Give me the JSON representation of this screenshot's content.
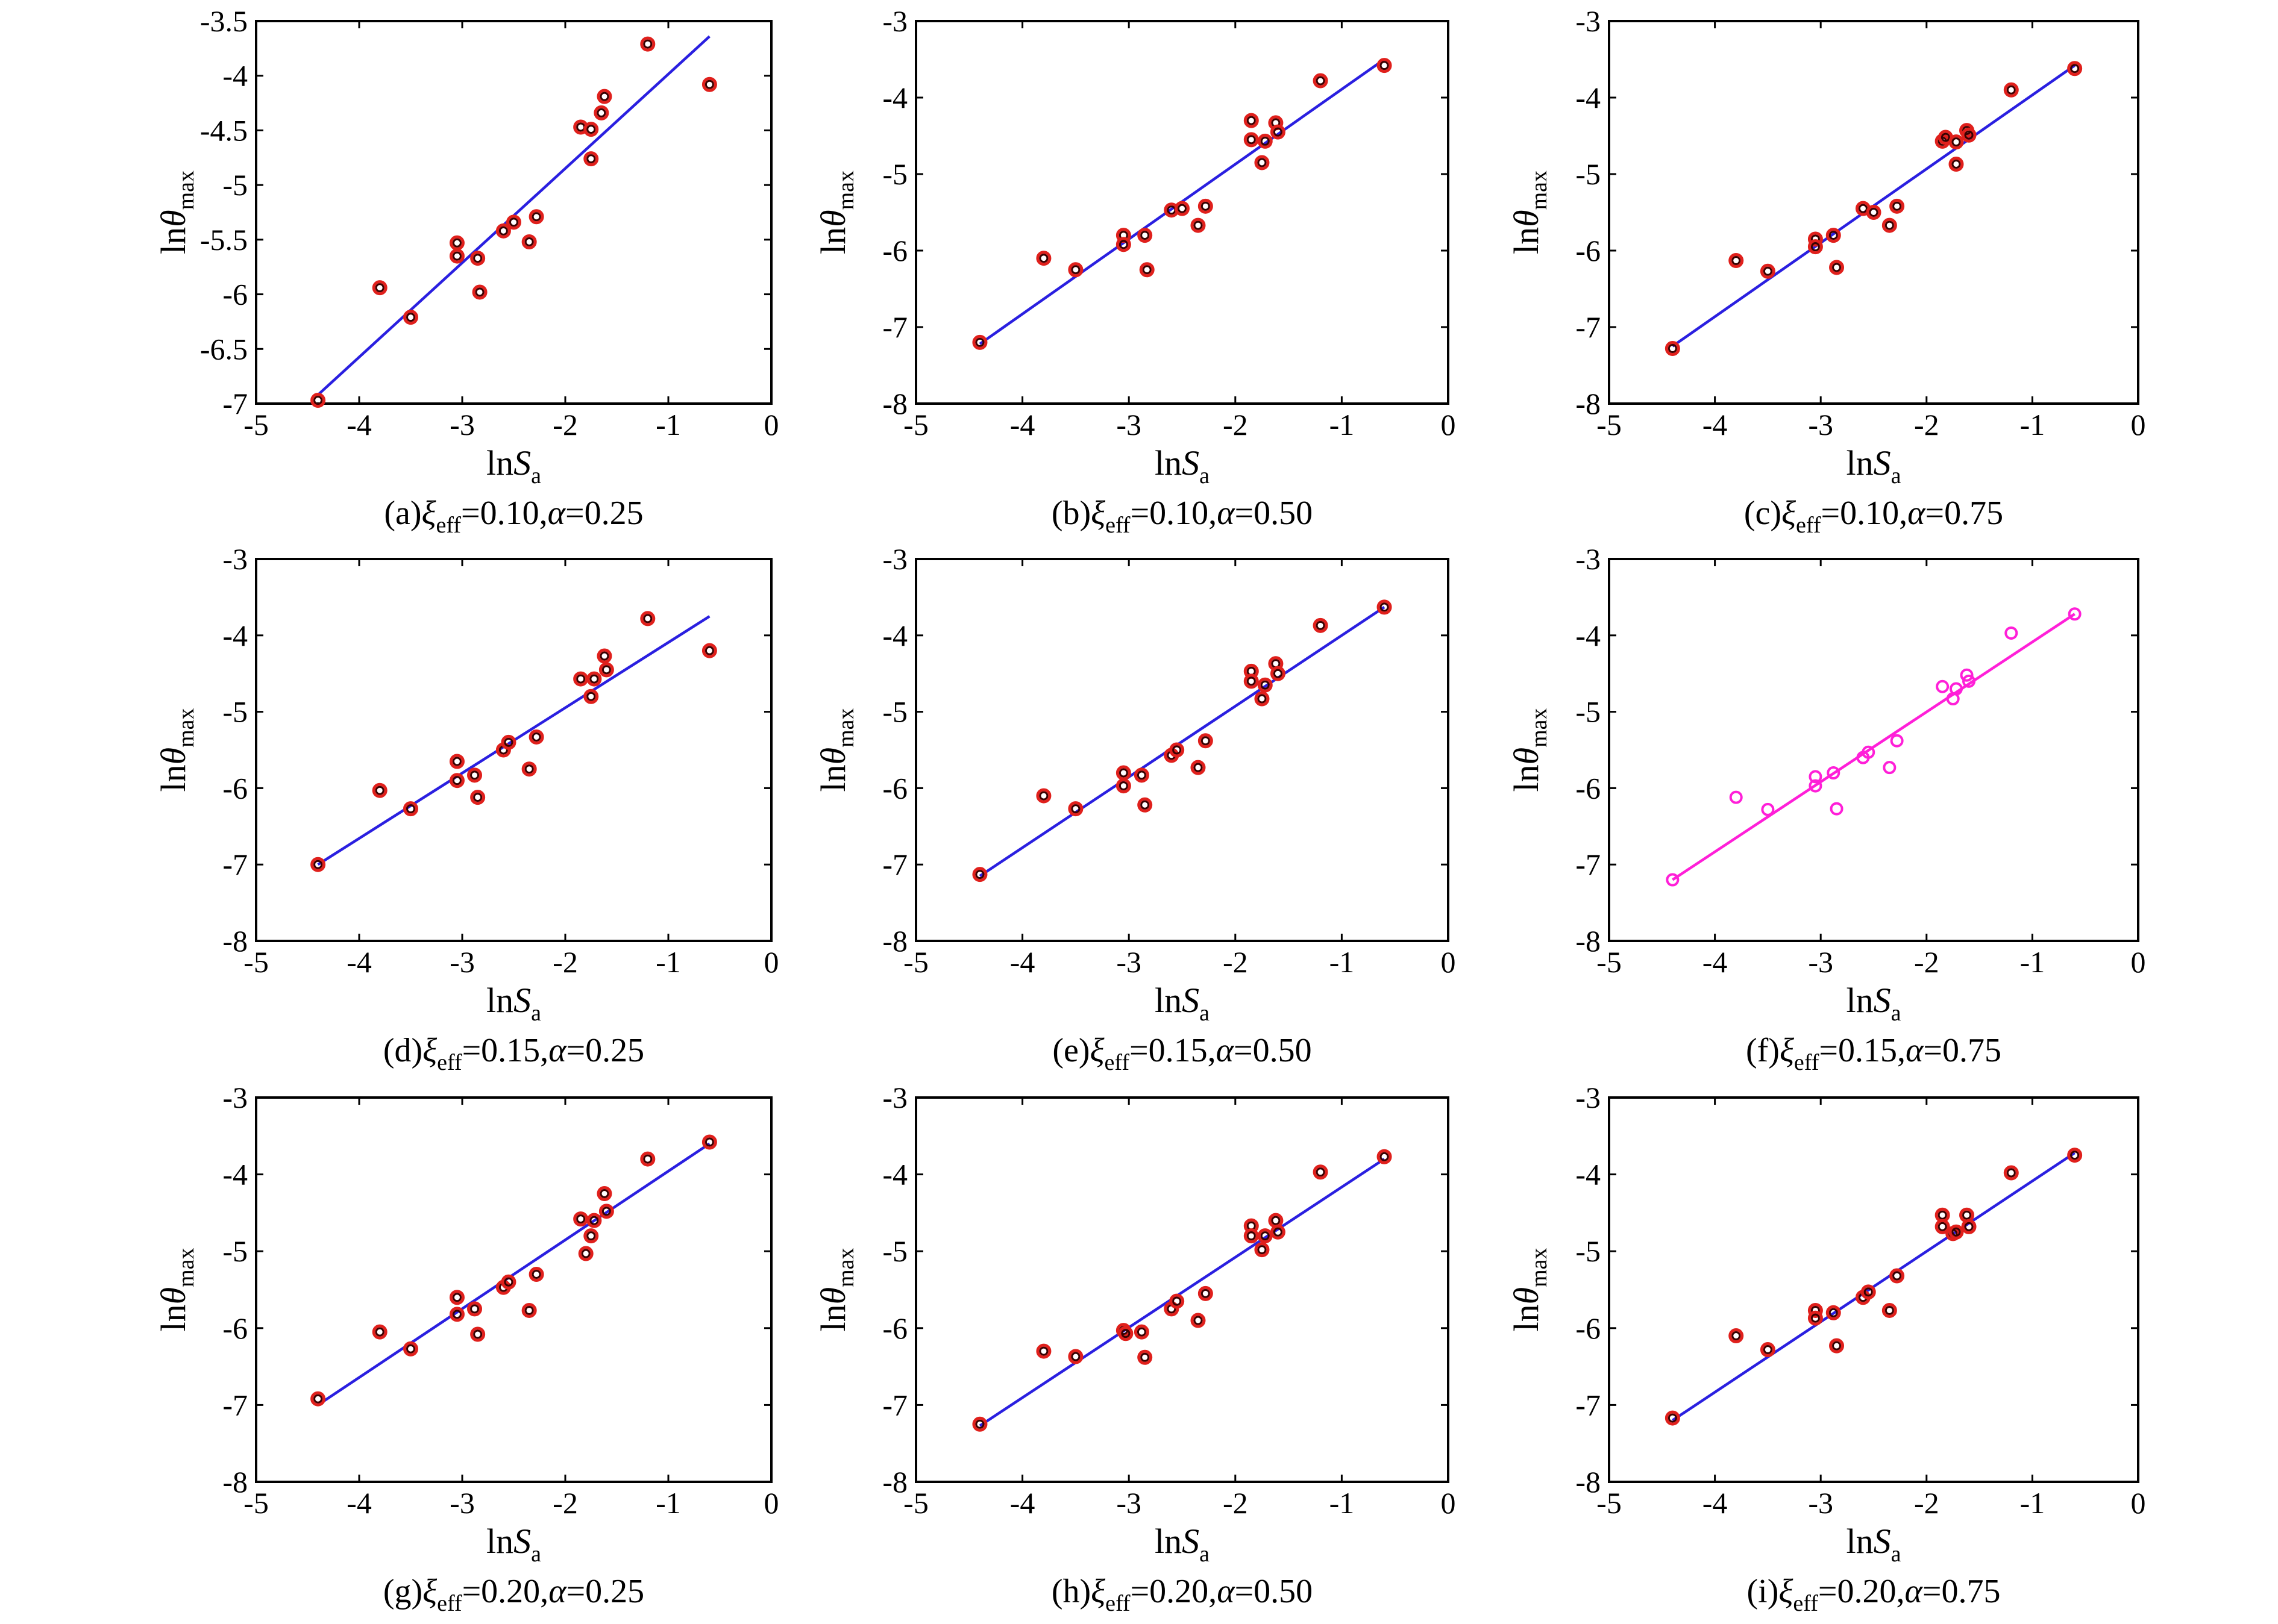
{
  "colors": {
    "marker_outer": "#e0201c",
    "marker_inner": "#3a0000",
    "line": "#2a1fe0",
    "line_highlight": "#ff1fd8",
    "axis": "#000000"
  },
  "chart_data": [
    {
      "type": "scatter",
      "id": "a",
      "caption_prefix": "(a)",
      "caption_vals": "=0.10,",
      "caption_alpha": "=0.25",
      "xlabel_pre": "ln",
      "xlabel_var": "S",
      "xlabel_sub": "a",
      "ylabel_pre": "ln",
      "ylabel_var": "θ",
      "ylabel_sub": "max",
      "xlim": [
        -5,
        0
      ],
      "ylim": [
        -7,
        -3.5
      ],
      "xticks": [
        -5,
        -4,
        -3,
        -2,
        -1,
        0
      ],
      "xtick_labels": [
        "-5",
        "-4",
        "-3",
        "-2",
        "-1",
        "0"
      ],
      "yticks": [
        -3.5,
        -4,
        -4.5,
        -5,
        -5.5,
        -6,
        -6.5,
        -7
      ],
      "ytick_labels": [
        "-3.5",
        "-4",
        "-4.5",
        "-5",
        "-5.5",
        "-6",
        "-6.5",
        "-7"
      ],
      "points": [
        [
          -4.4,
          -6.97
        ],
        [
          -3.8,
          -5.94
        ],
        [
          -3.5,
          -6.21
        ],
        [
          -3.05,
          -5.53
        ],
        [
          -3.05,
          -5.65
        ],
        [
          -2.85,
          -5.67
        ],
        [
          -2.83,
          -5.98
        ],
        [
          -2.6,
          -5.42
        ],
        [
          -2.5,
          -5.34
        ],
        [
          -2.35,
          -5.52
        ],
        [
          -2.28,
          -5.29
        ],
        [
          -1.85,
          -4.47
        ],
        [
          -1.75,
          -4.49
        ],
        [
          -1.75,
          -4.76
        ],
        [
          -1.65,
          -4.34
        ],
        [
          -1.62,
          -4.19
        ],
        [
          -1.2,
          -3.71
        ],
        [
          -0.6,
          -4.08
        ]
      ],
      "fit": [
        [
          -4.4,
          -6.92
        ],
        [
          -0.6,
          -3.64
        ]
      ],
      "highlight": false
    },
    {
      "type": "scatter",
      "id": "b",
      "caption_prefix": "(b)",
      "caption_vals": "=0.10,",
      "caption_alpha": "=0.50",
      "xlabel_pre": "ln",
      "xlabel_var": "S",
      "xlabel_sub": "a",
      "ylabel_pre": "ln",
      "ylabel_var": "θ",
      "ylabel_sub": "max",
      "xlim": [
        -5,
        0
      ],
      "ylim": [
        -8,
        -3
      ],
      "xticks": [
        -5,
        -4,
        -3,
        -2,
        -1,
        0
      ],
      "xtick_labels": [
        "-5",
        "-4",
        "-3",
        "-2",
        "-1",
        "0"
      ],
      "yticks": [
        -3,
        -4,
        -5,
        -6,
        -7,
        -8
      ],
      "ytick_labels": [
        "-3",
        "-4",
        "-5",
        "-6",
        "-7",
        "-8"
      ],
      "points": [
        [
          -4.4,
          -7.2
        ],
        [
          -3.8,
          -6.1
        ],
        [
          -3.5,
          -6.25
        ],
        [
          -3.05,
          -5.8
        ],
        [
          -3.05,
          -5.92
        ],
        [
          -2.85,
          -5.8
        ],
        [
          -2.83,
          -6.25
        ],
        [
          -2.6,
          -5.47
        ],
        [
          -2.5,
          -5.45
        ],
        [
          -2.35,
          -5.67
        ],
        [
          -2.28,
          -5.42
        ],
        [
          -1.85,
          -4.3
        ],
        [
          -1.85,
          -4.55
        ],
        [
          -1.75,
          -4.85
        ],
        [
          -1.72,
          -4.57
        ],
        [
          -1.62,
          -4.33
        ],
        [
          -1.6,
          -4.45
        ],
        [
          -1.2,
          -3.78
        ],
        [
          -0.6,
          -3.58
        ]
      ],
      "fit": [
        [
          -4.4,
          -7.22
        ],
        [
          -0.6,
          -3.5
        ]
      ],
      "highlight": false
    },
    {
      "type": "scatter",
      "id": "c",
      "caption_prefix": "(c)",
      "caption_vals": "=0.10,",
      "caption_alpha": "=0.75",
      "xlabel_pre": "ln",
      "xlabel_var": "S",
      "xlabel_sub": "a",
      "ylabel_pre": "ln",
      "ylabel_var": "θ",
      "ylabel_sub": "max",
      "xlim": [
        -5,
        0
      ],
      "ylim": [
        -8,
        -3
      ],
      "xticks": [
        -5,
        -4,
        -3,
        -2,
        -1,
        0
      ],
      "xtick_labels": [
        "-5",
        "-4",
        "-3",
        "-2",
        "-1",
        "0"
      ],
      "yticks": [
        -3,
        -4,
        -5,
        -6,
        -7,
        -8
      ],
      "ytick_labels": [
        "-3",
        "-4",
        "-5",
        "-6",
        "-7",
        "-8"
      ],
      "points": [
        [
          -4.4,
          -7.28
        ],
        [
          -3.8,
          -6.13
        ],
        [
          -3.5,
          -6.27
        ],
        [
          -3.05,
          -5.85
        ],
        [
          -3.05,
          -5.95
        ],
        [
          -2.88,
          -5.8
        ],
        [
          -2.85,
          -6.22
        ],
        [
          -2.6,
          -5.45
        ],
        [
          -2.5,
          -5.5
        ],
        [
          -2.35,
          -5.67
        ],
        [
          -2.28,
          -5.42
        ],
        [
          -1.85,
          -4.57
        ],
        [
          -1.82,
          -4.52
        ],
        [
          -1.72,
          -4.87
        ],
        [
          -1.72,
          -4.58
        ],
        [
          -1.62,
          -4.43
        ],
        [
          -1.6,
          -4.49
        ],
        [
          -1.2,
          -3.9
        ],
        [
          -0.6,
          -3.62
        ]
      ],
      "fit": [
        [
          -4.4,
          -7.25
        ],
        [
          -0.6,
          -3.58
        ]
      ],
      "highlight": false
    },
    {
      "type": "scatter",
      "id": "d",
      "caption_prefix": "(d)",
      "caption_vals": "=0.15,",
      "caption_alpha": "=0.25",
      "xlabel_pre": "ln",
      "xlabel_var": "S",
      "xlabel_sub": "a",
      "ylabel_pre": "ln",
      "ylabel_var": "θ",
      "ylabel_sub": "max",
      "xlim": [
        -5,
        0
      ],
      "ylim": [
        -8,
        -3
      ],
      "xticks": [
        -5,
        -4,
        -3,
        -2,
        -1,
        0
      ],
      "xtick_labels": [
        "-5",
        "-4",
        "-3",
        "-2",
        "-1",
        "0"
      ],
      "yticks": [
        -3,
        -4,
        -5,
        -6,
        -7,
        -8
      ],
      "ytick_labels": [
        "-3",
        "-4",
        "-5",
        "-6",
        "-7",
        "-8"
      ],
      "points": [
        [
          -4.4,
          -7.0
        ],
        [
          -3.8,
          -6.03
        ],
        [
          -3.5,
          -6.27
        ],
        [
          -3.05,
          -5.65
        ],
        [
          -3.05,
          -5.9
        ],
        [
          -2.88,
          -5.83
        ],
        [
          -2.85,
          -6.12
        ],
        [
          -2.6,
          -5.5
        ],
        [
          -2.55,
          -5.4
        ],
        [
          -2.35,
          -5.75
        ],
        [
          -2.28,
          -5.33
        ],
        [
          -1.85,
          -4.57
        ],
        [
          -1.75,
          -4.8
        ],
        [
          -1.72,
          -4.57
        ],
        [
          -1.62,
          -4.27
        ],
        [
          -1.6,
          -4.45
        ],
        [
          -1.2,
          -3.78
        ],
        [
          -0.6,
          -4.2
        ]
      ],
      "fit": [
        [
          -4.4,
          -7.0
        ],
        [
          -0.6,
          -3.75
        ]
      ],
      "highlight": false
    },
    {
      "type": "scatter",
      "id": "e",
      "caption_prefix": "(e)",
      "caption_vals": "=0.15,",
      "caption_alpha": "=0.50",
      "xlabel_pre": "ln",
      "xlabel_var": "S",
      "xlabel_sub": "a",
      "ylabel_pre": "ln",
      "ylabel_var": "θ",
      "ylabel_sub": "max",
      "xlim": [
        -5,
        0
      ],
      "ylim": [
        -8,
        -3
      ],
      "xticks": [
        -5,
        -4,
        -3,
        -2,
        -1,
        0
      ],
      "xtick_labels": [
        "-5",
        "-4",
        "-3",
        "-2",
        "-1",
        "0"
      ],
      "yticks": [
        -3,
        -4,
        -5,
        -6,
        -7,
        -8
      ],
      "ytick_labels": [
        "-3",
        "-4",
        "-5",
        "-6",
        "-7",
        "-8"
      ],
      "points": [
        [
          -4.4,
          -7.13
        ],
        [
          -3.8,
          -6.1
        ],
        [
          -3.5,
          -6.27
        ],
        [
          -3.05,
          -5.8
        ],
        [
          -3.05,
          -5.97
        ],
        [
          -2.88,
          -5.83
        ],
        [
          -2.85,
          -6.22
        ],
        [
          -2.6,
          -5.57
        ],
        [
          -2.55,
          -5.5
        ],
        [
          -2.35,
          -5.73
        ],
        [
          -2.28,
          -5.38
        ],
        [
          -1.85,
          -4.47
        ],
        [
          -1.85,
          -4.6
        ],
        [
          -1.75,
          -4.83
        ],
        [
          -1.72,
          -4.65
        ],
        [
          -1.62,
          -4.37
        ],
        [
          -1.6,
          -4.5
        ],
        [
          -1.2,
          -3.87
        ],
        [
          -0.6,
          -3.63
        ]
      ],
      "fit": [
        [
          -4.4,
          -7.15
        ],
        [
          -0.6,
          -3.63
        ]
      ],
      "highlight": false
    },
    {
      "type": "scatter",
      "id": "f",
      "caption_prefix": "(f)",
      "caption_vals": "=0.15,",
      "caption_alpha": "=0.75",
      "xlabel_pre": "ln",
      "xlabel_var": "S",
      "xlabel_sub": "a",
      "ylabel_pre": "ln",
      "ylabel_var": "θ",
      "ylabel_sub": "max",
      "xlim": [
        -5,
        0
      ],
      "ylim": [
        -8,
        -3
      ],
      "xticks": [
        -5,
        -4,
        -3,
        -2,
        -1,
        0
      ],
      "xtick_labels": [
        "-5",
        "-4",
        "-3",
        "-2",
        "-1",
        "0"
      ],
      "yticks": [
        -3,
        -4,
        -5,
        -6,
        -7,
        -8
      ],
      "ytick_labels": [
        "-3",
        "-4",
        "-5",
        "-6",
        "-7",
        "-8"
      ],
      "points": [
        [
          -4.4,
          -7.2
        ],
        [
          -3.8,
          -6.12
        ],
        [
          -3.5,
          -6.28
        ],
        [
          -3.05,
          -5.85
        ],
        [
          -3.05,
          -5.97
        ],
        [
          -2.88,
          -5.8
        ],
        [
          -2.85,
          -6.27
        ],
        [
          -2.6,
          -5.6
        ],
        [
          -2.55,
          -5.53
        ],
        [
          -2.35,
          -5.73
        ],
        [
          -2.28,
          -5.38
        ],
        [
          -1.85,
          -4.67
        ],
        [
          -1.75,
          -4.83
        ],
        [
          -1.72,
          -4.7
        ],
        [
          -1.62,
          -4.52
        ],
        [
          -1.6,
          -4.6
        ],
        [
          -1.2,
          -3.97
        ],
        [
          -0.6,
          -3.72
        ]
      ],
      "fit": [
        [
          -4.4,
          -7.2
        ],
        [
          -0.6,
          -3.72
        ]
      ],
      "highlight": true
    },
    {
      "type": "scatter",
      "id": "g",
      "caption_prefix": "(g)",
      "caption_vals": "=0.20,",
      "caption_alpha": "=0.25",
      "xlabel_pre": "ln",
      "xlabel_var": "S",
      "xlabel_sub": "a",
      "ylabel_pre": "ln",
      "ylabel_var": "θ",
      "ylabel_sub": "max",
      "xlim": [
        -5,
        0
      ],
      "ylim": [
        -8,
        -3
      ],
      "xticks": [
        -5,
        -4,
        -3,
        -2,
        -1,
        0
      ],
      "xtick_labels": [
        "-5",
        "-4",
        "-3",
        "-2",
        "-1",
        "0"
      ],
      "yticks": [
        -3,
        -4,
        -5,
        -6,
        -7,
        -8
      ],
      "ytick_labels": [
        "-3",
        "-4",
        "-5",
        "-6",
        "-7",
        "-8"
      ],
      "points": [
        [
          -4.4,
          -6.92
        ],
        [
          -3.8,
          -6.05
        ],
        [
          -3.5,
          -6.27
        ],
        [
          -3.05,
          -5.6
        ],
        [
          -3.05,
          -5.82
        ],
        [
          -2.88,
          -5.75
        ],
        [
          -2.85,
          -6.08
        ],
        [
          -2.6,
          -5.47
        ],
        [
          -2.55,
          -5.4
        ],
        [
          -2.35,
          -5.77
        ],
        [
          -2.28,
          -5.3
        ],
        [
          -1.85,
          -4.58
        ],
        [
          -1.8,
          -5.03
        ],
        [
          -1.75,
          -4.8
        ],
        [
          -1.72,
          -4.6
        ],
        [
          -1.62,
          -4.25
        ],
        [
          -1.6,
          -4.48
        ],
        [
          -1.2,
          -3.8
        ],
        [
          -0.6,
          -3.58
        ]
      ],
      "fit": [
        [
          -4.4,
          -7.0
        ],
        [
          -0.6,
          -3.6
        ]
      ],
      "highlight": false
    },
    {
      "type": "scatter",
      "id": "h",
      "caption_prefix": "(h)",
      "caption_vals": "=0.20,",
      "caption_alpha": "=0.50",
      "xlabel_pre": "ln",
      "xlabel_var": "S",
      "xlabel_sub": "a",
      "ylabel_pre": "ln",
      "ylabel_var": "θ",
      "ylabel_sub": "max",
      "xlim": [
        -5,
        0
      ],
      "ylim": [
        -8,
        -3
      ],
      "xticks": [
        -5,
        -4,
        -3,
        -2,
        -1,
        0
      ],
      "xtick_labels": [
        "-5",
        "-4",
        "-3",
        "-2",
        "-1",
        "0"
      ],
      "yticks": [
        -3,
        -4,
        -5,
        -6,
        -7,
        -8
      ],
      "ytick_labels": [
        "-3",
        "-4",
        "-5",
        "-6",
        "-7",
        "-8"
      ],
      "points": [
        [
          -4.4,
          -7.25
        ],
        [
          -3.8,
          -6.3
        ],
        [
          -3.5,
          -6.37
        ],
        [
          -3.05,
          -6.03
        ],
        [
          -3.03,
          -6.07
        ],
        [
          -2.88,
          -6.05
        ],
        [
          -2.85,
          -6.38
        ],
        [
          -2.6,
          -5.75
        ],
        [
          -2.55,
          -5.65
        ],
        [
          -2.35,
          -5.9
        ],
        [
          -2.28,
          -5.55
        ],
        [
          -1.85,
          -4.67
        ],
        [
          -1.85,
          -4.8
        ],
        [
          -1.75,
          -4.98
        ],
        [
          -1.72,
          -4.8
        ],
        [
          -1.62,
          -4.6
        ],
        [
          -1.6,
          -4.75
        ],
        [
          -1.2,
          -3.97
        ],
        [
          -0.6,
          -3.77
        ]
      ],
      "fit": [
        [
          -4.4,
          -7.27
        ],
        [
          -0.6,
          -3.8
        ]
      ],
      "highlight": false
    },
    {
      "type": "scatter",
      "id": "i",
      "caption_prefix": "(i)",
      "caption_vals": "=0.20,",
      "caption_alpha": "=0.75",
      "xlabel_pre": "ln",
      "xlabel_var": "S",
      "xlabel_sub": "a",
      "ylabel_pre": "ln",
      "ylabel_var": "θ",
      "ylabel_sub": "max",
      "xlim": [
        -5,
        0
      ],
      "ylim": [
        -8,
        -3
      ],
      "xticks": [
        -5,
        -4,
        -3,
        -2,
        -1,
        0
      ],
      "xtick_labels": [
        "-5",
        "-4",
        "-3",
        "-2",
        "-1",
        "0"
      ],
      "yticks": [
        -3,
        -4,
        -5,
        -6,
        -7,
        -8
      ],
      "ytick_labels": [
        "-3",
        "-4",
        "-5",
        "-6",
        "-7",
        "-8"
      ],
      "points": [
        [
          -4.4,
          -7.17
        ],
        [
          -3.8,
          -6.1
        ],
        [
          -3.5,
          -6.28
        ],
        [
          -3.05,
          -5.77
        ],
        [
          -3.05,
          -5.87
        ],
        [
          -2.88,
          -5.8
        ],
        [
          -2.85,
          -6.23
        ],
        [
          -2.6,
          -5.6
        ],
        [
          -2.55,
          -5.53
        ],
        [
          -2.35,
          -5.77
        ],
        [
          -2.28,
          -5.32
        ],
        [
          -1.85,
          -4.53
        ],
        [
          -1.85,
          -4.68
        ],
        [
          -1.75,
          -4.77
        ],
        [
          -1.72,
          -4.75
        ],
        [
          -1.62,
          -4.53
        ],
        [
          -1.6,
          -4.68
        ],
        [
          -1.2,
          -3.98
        ],
        [
          -0.6,
          -3.75
        ]
      ],
      "fit": [
        [
          -4.4,
          -7.2
        ],
        [
          -0.6,
          -3.72
        ]
      ],
      "highlight": false
    }
  ]
}
